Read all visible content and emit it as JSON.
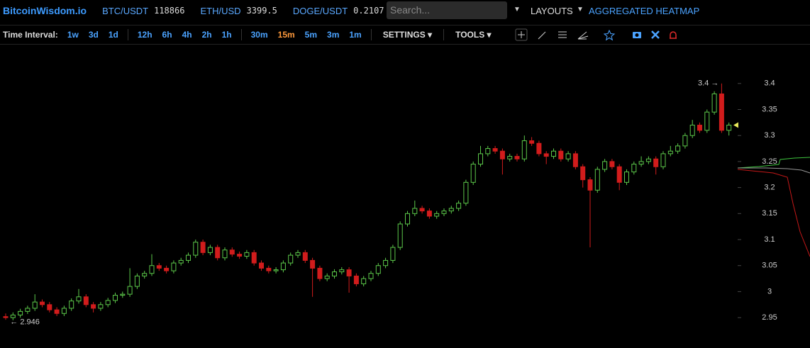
{
  "header": {
    "logo": "BitcoinWisdom.io",
    "tickers": [
      {
        "symbol": "BTC/USDT",
        "price": 118866
      },
      {
        "symbol": "ETH/USD",
        "price": 3399.5
      },
      {
        "symbol": "DOGE/USDT",
        "price": 0.2107
      }
    ],
    "search_placeholder": "Search...",
    "menus": [
      "LAYOUTS",
      "AGGREGATED HEATMAP"
    ]
  },
  "toolbar": {
    "label": "Time Interval:",
    "interval_groups": [
      [
        "1w",
        "3d",
        "1d"
      ],
      [
        "12h",
        "6h",
        "4h",
        "2h",
        "1h"
      ],
      [
        "30m",
        "15m",
        "5m",
        "3m",
        "1m"
      ]
    ],
    "active_interval": "15m",
    "menus": [
      "SETTINGS",
      "TOOLS"
    ]
  },
  "chart_data": {
    "type": "candlestick",
    "up_color": "#5cc84a",
    "down_color": "#d11c1c",
    "open": [
      2.952,
      2.95,
      2.955,
      2.962,
      2.968,
      2.98,
      2.975,
      2.965,
      2.958,
      2.968,
      2.982,
      2.99,
      2.975,
      2.968,
      2.975,
      2.983,
      2.993,
      2.995,
      3.01,
      3.03,
      3.035,
      3.05,
      3.045,
      3.04,
      3.055,
      3.06,
      3.07,
      3.095,
      3.075,
      3.085,
      3.065,
      3.08,
      3.072,
      3.068,
      3.075,
      3.055,
      3.045,
      3.04,
      3.042,
      3.055,
      3.07,
      3.075,
      3.06,
      3.045,
      3.025,
      3.03,
      3.038,
      3.042,
      3.03,
      3.015,
      3.025,
      3.035,
      3.05,
      3.06,
      3.085,
      3.13,
      3.15,
      3.16,
      3.155,
      3.145,
      3.15,
      3.155,
      3.16,
      3.17,
      3.21,
      3.245,
      3.265,
      3.275,
      3.27,
      3.255,
      3.26,
      3.255,
      3.29,
      3.285,
      3.265,
      3.26,
      3.27,
      3.255,
      3.265,
      3.24,
      3.215,
      3.195,
      3.235,
      3.25,
      3.24,
      3.21,
      3.23,
      3.245,
      3.25,
      3.255,
      3.24,
      3.265,
      3.27,
      3.28,
      3.3,
      3.32,
      3.31,
      3.345,
      3.38,
      3.31
    ],
    "high": [
      2.958,
      2.96,
      2.967,
      2.973,
      2.995,
      2.985,
      2.98,
      2.97,
      2.973,
      2.987,
      3.005,
      2.995,
      2.98,
      2.98,
      2.988,
      2.998,
      3.0,
      3.045,
      3.035,
      3.04,
      3.072,
      3.055,
      3.05,
      3.06,
      3.065,
      3.075,
      3.1,
      3.1,
      3.09,
      3.09,
      3.085,
      3.085,
      3.077,
      3.08,
      3.08,
      3.06,
      3.05,
      3.047,
      3.06,
      3.075,
      3.08,
      3.08,
      3.065,
      3.05,
      3.035,
      3.043,
      3.047,
      3.047,
      3.035,
      3.03,
      3.04,
      3.055,
      3.065,
      3.09,
      3.135,
      3.155,
      3.175,
      3.165,
      3.16,
      3.155,
      3.16,
      3.165,
      3.175,
      3.215,
      3.25,
      3.28,
      3.28,
      3.28,
      3.275,
      3.265,
      3.265,
      3.3,
      3.297,
      3.29,
      3.27,
      3.275,
      3.275,
      3.27,
      3.27,
      3.245,
      3.22,
      3.24,
      3.255,
      3.255,
      3.245,
      3.235,
      3.25,
      3.26,
      3.26,
      3.26,
      3.27,
      3.28,
      3.285,
      3.305,
      3.33,
      3.325,
      3.35,
      3.385,
      3.4,
      3.325
    ],
    "low": [
      2.946,
      2.945,
      2.95,
      2.957,
      2.963,
      2.97,
      2.96,
      2.953,
      2.953,
      2.963,
      2.977,
      2.97,
      2.96,
      2.963,
      2.97,
      2.978,
      2.988,
      2.99,
      3.005,
      3.025,
      3.03,
      3.04,
      3.035,
      3.035,
      3.05,
      3.055,
      3.065,
      3.07,
      3.07,
      3.06,
      3.06,
      3.067,
      3.063,
      3.063,
      3.05,
      3.04,
      3.035,
      3.035,
      3.037,
      3.05,
      3.065,
      3.055,
      2.99,
      3.02,
      3.02,
      3.025,
      3.033,
      2.998,
      3.01,
      3.01,
      3.02,
      3.03,
      3.045,
      3.055,
      3.08,
      3.125,
      3.145,
      3.15,
      3.14,
      3.14,
      3.145,
      3.15,
      3.155,
      3.165,
      3.205,
      3.24,
      3.26,
      3.265,
      3.225,
      3.25,
      3.25,
      3.25,
      3.28,
      3.26,
      3.245,
      3.255,
      3.25,
      3.25,
      3.235,
      3.2,
      3.085,
      3.19,
      3.23,
      3.235,
      3.195,
      3.205,
      3.225,
      3.24,
      3.245,
      3.225,
      3.235,
      3.26,
      3.265,
      3.275,
      3.295,
      3.305,
      3.305,
      3.34,
      3.305,
      3.3
    ],
    "close": [
      2.95,
      2.955,
      2.962,
      2.968,
      2.98,
      2.975,
      2.965,
      2.958,
      2.968,
      2.982,
      2.99,
      2.975,
      2.968,
      2.975,
      2.983,
      2.993,
      2.995,
      3.01,
      3.03,
      3.035,
      3.05,
      3.045,
      3.04,
      3.055,
      3.06,
      3.07,
      3.095,
      3.075,
      3.085,
      3.065,
      3.08,
      3.072,
      3.068,
      3.075,
      3.055,
      3.045,
      3.04,
      3.042,
      3.055,
      3.07,
      3.075,
      3.06,
      3.045,
      3.025,
      3.03,
      3.038,
      3.042,
      3.03,
      3.015,
      3.025,
      3.035,
      3.05,
      3.06,
      3.085,
      3.13,
      3.15,
      3.16,
      3.155,
      3.145,
      3.15,
      3.155,
      3.16,
      3.17,
      3.21,
      3.245,
      3.265,
      3.275,
      3.27,
      3.255,
      3.26,
      3.255,
      3.29,
      3.285,
      3.265,
      3.26,
      3.27,
      3.255,
      3.265,
      3.24,
      3.215,
      3.195,
      3.235,
      3.25,
      3.24,
      3.21,
      3.23,
      3.245,
      3.25,
      3.255,
      3.24,
      3.265,
      3.27,
      3.28,
      3.3,
      3.32,
      3.31,
      3.345,
      3.38,
      3.31,
      3.32
    ],
    "ylim": [
      2.893,
      3.476
    ],
    "yticks": [
      2.95,
      3,
      3.05,
      3.1,
      3.15,
      3.2,
      3.25,
      3.3,
      3.35,
      3.4
    ],
    "high_annotation": "3.4 →",
    "low_annotation": "← 2.946"
  }
}
